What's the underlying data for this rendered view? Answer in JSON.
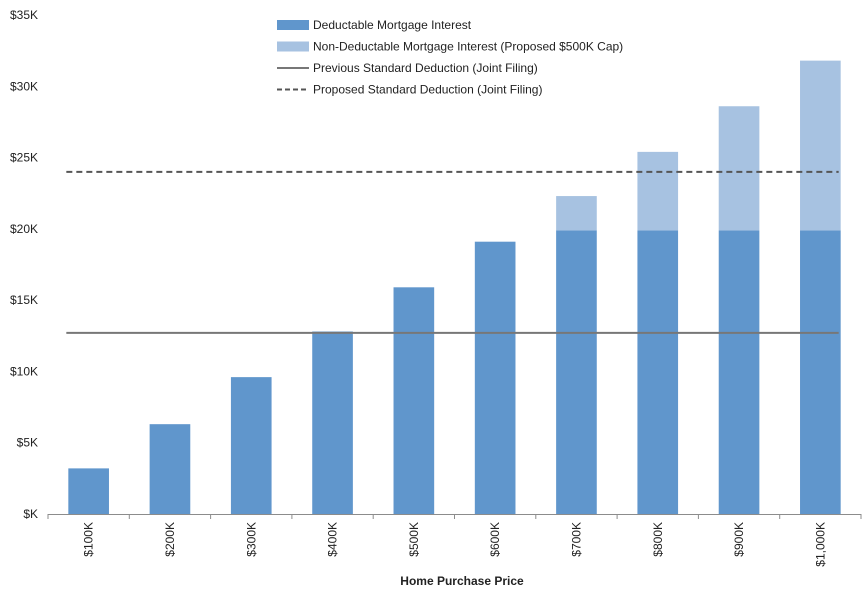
{
  "chart_data": {
    "type": "bar",
    "stacked": true,
    "title": "",
    "xlabel": "Home Purchase Price",
    "ylabel": "",
    "categories": [
      "$100K",
      "$200K",
      "$300K",
      "$400K",
      "$500K",
      "$600K",
      "$700K",
      "$800K",
      "$900K",
      "$1,000K"
    ],
    "series": [
      {
        "name": "Deductable Mortgage Interest",
        "values": [
          3200,
          6300,
          9600,
          12800,
          15900,
          19100,
          19900,
          19900,
          19900,
          19900
        ],
        "color": "#6096CC"
      },
      {
        "name": "Non-Deductable Mortgage Interest (Proposed $500K Cap)",
        "values": [
          0,
          0,
          0,
          0,
          0,
          0,
          2400,
          5500,
          8700,
          11900
        ],
        "color": "#A7C2E1"
      }
    ],
    "reference_lines": [
      {
        "name": "Previous Standard Deduction (Joint Filing)",
        "value": 12700,
        "style": "solid",
        "color": "#777777"
      },
      {
        "name": "Proposed Standard Deduction (Joint Filing)",
        "value": 24000,
        "style": "dashed",
        "color": "#555555"
      }
    ],
    "ylim": [
      0,
      35000
    ],
    "yticks": [
      0,
      5000,
      10000,
      15000,
      20000,
      25000,
      30000,
      35000
    ],
    "ytick_labels": [
      "$K",
      "$5K",
      "$10K",
      "$15K",
      "$20K",
      "$25K",
      "$30K",
      "$35K"
    ],
    "grid": false,
    "legend_position": "top-center"
  }
}
